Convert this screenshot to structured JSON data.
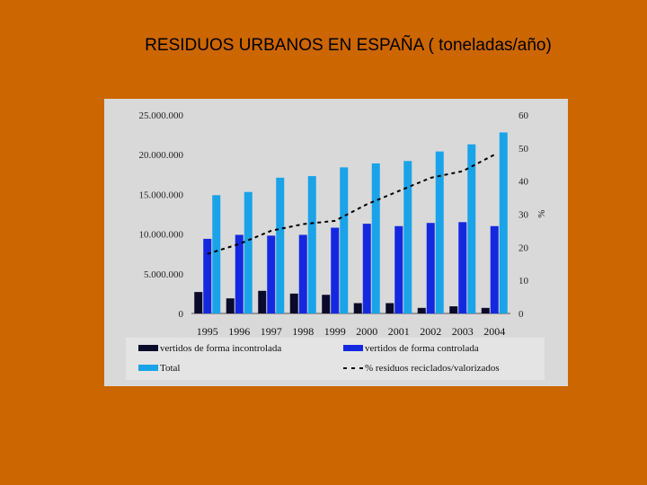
{
  "slide": {
    "title": "RESIDUOS URBANOS EN ESPAÑA ( toneladas/año)",
    "background": "#cc6600"
  },
  "chart_data": {
    "type": "bar",
    "categories": [
      "1995",
      "1996",
      "1997",
      "1998",
      "1999",
      "2000",
      "2001",
      "2002",
      "2003",
      "2004"
    ],
    "series": [
      {
        "name": "vertidos de forma incontrolada",
        "color": "#0a0a2a",
        "values": [
          2700000,
          1900000,
          2850000,
          2500000,
          2350000,
          1300000,
          1300000,
          700000,
          900000,
          700000
        ]
      },
      {
        "name": "vertidos de forma controlada",
        "color": "#1428e0",
        "values": [
          9400000,
          9900000,
          9800000,
          9900000,
          10800000,
          11300000,
          11000000,
          11400000,
          11500000,
          11000000
        ]
      },
      {
        "name": "Total",
        "color": "#1aa3e8",
        "values": [
          14900000,
          15300000,
          17100000,
          17300000,
          18400000,
          18900000,
          19200000,
          20400000,
          21300000,
          22800000
        ]
      },
      {
        "name": "% residuos reciclados/valorizados",
        "type": "line",
        "axis": "right",
        "color": "#000000",
        "values": [
          18,
          21,
          25,
          27,
          28,
          33,
          37,
          41,
          43,
          48
        ]
      }
    ],
    "y_left": {
      "min": 0,
      "max": 25000000,
      "ticks": [
        "0",
        "5.000.000",
        "10.000.000",
        "15.000.000",
        "20.000.000",
        "25.000.000"
      ]
    },
    "y_right": {
      "min": 0,
      "max": 60,
      "ticks": [
        "0",
        "10",
        "20",
        "30",
        "40",
        "50",
        "60"
      ],
      "label": "%"
    },
    "legend": {
      "position": "bottom",
      "items": [
        "vertidos de forma incontrolada",
        "vertidos de forma controlada",
        "Total",
        "% residuos reciclados/valorizados"
      ]
    }
  }
}
